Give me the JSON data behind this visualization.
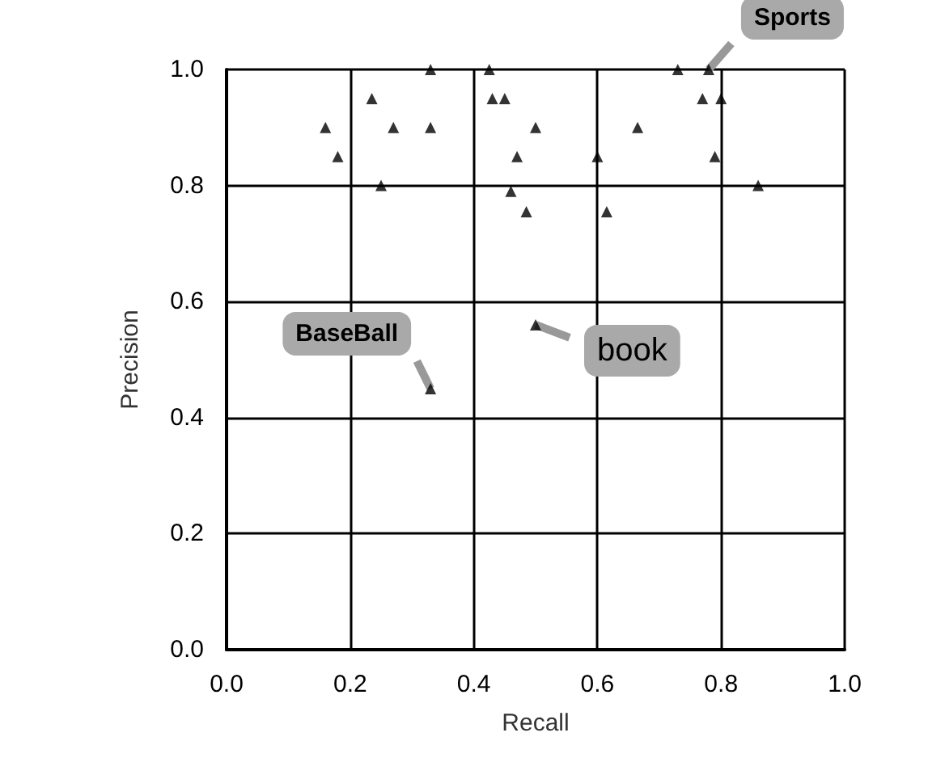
{
  "chart_data": {
    "type": "scatter",
    "xlabel": "Recall",
    "ylabel": "Precision",
    "xlim": [
      0,
      1
    ],
    "xticks": [
      {
        "value": 0,
        "label": "0.0"
      },
      {
        "value": 0.2,
        "label": "0.2"
      },
      {
        "value": 0.4,
        "label": "0.4"
      },
      {
        "value": 0.6,
        "label": "0.6"
      },
      {
        "value": 0.8,
        "label": "0.8"
      },
      {
        "value": 1,
        "label": "1.0"
      }
    ],
    "ylim": [
      0,
      1
    ],
    "yticks": [
      {
        "value": 0,
        "label": "0.0"
      },
      {
        "value": 0.2,
        "label": "0.2"
      },
      {
        "value": 0.4,
        "label": "0.4"
      },
      {
        "value": 0.6,
        "label": "0.6"
      },
      {
        "value": 0.8,
        "label": "0.8"
      },
      {
        "value": 1,
        "label": "1.0"
      }
    ],
    "grid": true,
    "marker": "triangle",
    "series": [
      {
        "color": "#000000",
        "x": [
          0.33,
          0.425,
          0.73,
          0.78,
          0.235,
          0.43,
          0.45,
          0.77,
          0.8,
          0.16,
          0.27,
          0.33,
          0.5,
          0.665,
          0.18,
          0.47,
          0.6,
          0.79,
          0.25,
          0.86,
          0.46,
          0.485,
          0.615,
          0.5,
          0.33
        ],
        "values": [
          1.0,
          1.0,
          1.0,
          1.0,
          0.95,
          0.95,
          0.95,
          0.95,
          0.95,
          0.9,
          0.9,
          0.9,
          0.9,
          0.9,
          0.85,
          0.85,
          0.85,
          0.85,
          0.8,
          0.8,
          0.79,
          0.755,
          0.755,
          0.56,
          0.45
        ]
      }
    ],
    "annotations": [
      {
        "text": "Sports",
        "x": 0.78,
        "y": 1.0
      },
      {
        "text": "BaseBall",
        "x": 0.33,
        "y": 0.45
      },
      {
        "text": "book",
        "x": 0.5,
        "y": 0.56
      }
    ]
  }
}
